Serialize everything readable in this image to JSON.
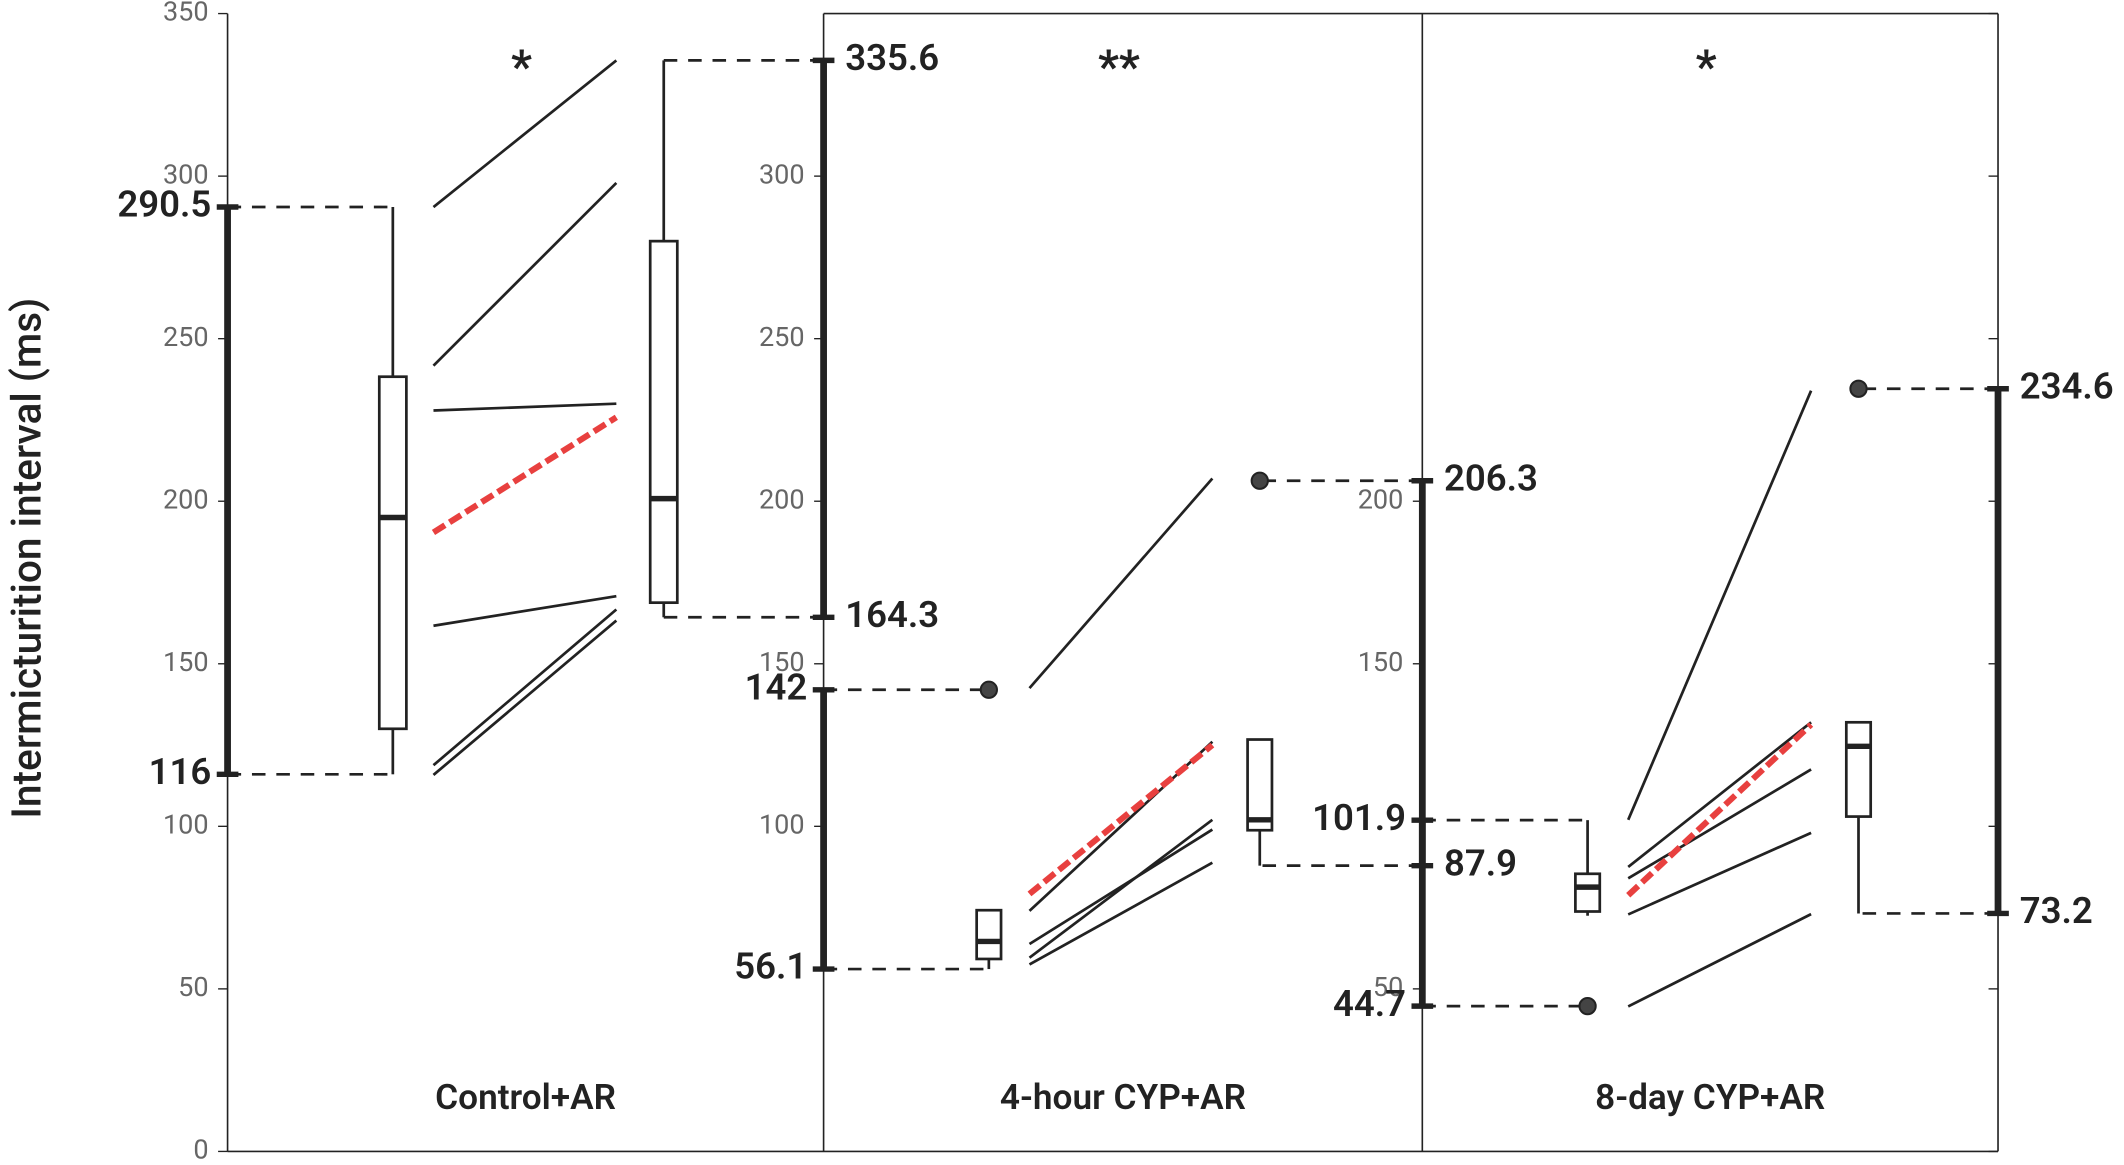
{
  "chart_data": {
    "type": "paired-box",
    "ylabel": "Intermicturition interval (ms)",
    "ylim": [
      0,
      350
    ],
    "yticks": [
      0,
      50,
      100,
      150,
      200,
      250,
      300,
      350
    ],
    "line_color": "#222222",
    "mean_color": "#e8403f",
    "panels": [
      {
        "label": "Control+AR",
        "significance": "*",
        "before": {
          "whisker_low": 116,
          "q1": 130,
          "median": 195,
          "q3": 238.3,
          "whisker_high": 290.5,
          "outliers": []
        },
        "after": {
          "whisker_low": 164.3,
          "q1": 168.8,
          "median": 200.8,
          "q3": 280,
          "whisker_high": 335.6,
          "outliers": []
        },
        "pairs": {
          "before": [
            290.5,
            241.7,
            227.9,
            161.7,
            118.8,
            115.8
          ],
          "after": [
            335.6,
            297.9,
            230,
            170.8,
            166.7,
            163.3
          ]
        },
        "mean": {
          "before": 190.4,
          "after": 225.8
        }
      },
      {
        "label": "4-hour CYP+AR",
        "significance": "**",
        "yticks": [
          100,
          150,
          200,
          250,
          300
        ],
        "before": {
          "whisker_low": 56.1,
          "q1": 59.2,
          "median": 64.6,
          "q3": 74.2,
          "whisker_high": 74.2,
          "outliers": [
            142
          ]
        },
        "after": {
          "whisker_low": 87.9,
          "q1": 98.8,
          "median": 102,
          "q3": 126.7,
          "whisker_high": 126.7,
          "outliers": [
            206.3
          ]
        },
        "pairs": {
          "before": [
            142.5,
            74,
            63.8,
            59.6,
            57.5
          ],
          "after": [
            207,
            126,
            99,
            102,
            88.8
          ]
        },
        "mean": {
          "before": 79.2,
          "after": 125
        }
      },
      {
        "label": "8-day CYP+AR",
        "significance": "*",
        "yticks": [
          50,
          150,
          200
        ],
        "before": {
          "whisker_low": 72.5,
          "q1": 73.8,
          "median": 81.3,
          "q3": 85.4,
          "whisker_high": 101.9,
          "outliers": [
            44.7
          ]
        },
        "after": {
          "whisker_low": 73.2,
          "q1": 103,
          "median": 124.6,
          "q3": 132,
          "whisker_high": 132,
          "outliers": [
            234.6
          ]
        },
        "pairs": {
          "before": [
            102,
            87.5,
            84,
            72.9,
            44.6
          ],
          "after": [
            234,
            132,
            117.5,
            98,
            73
          ]
        },
        "mean": {
          "before": 78.8,
          "after": 131.3
        }
      }
    ]
  }
}
